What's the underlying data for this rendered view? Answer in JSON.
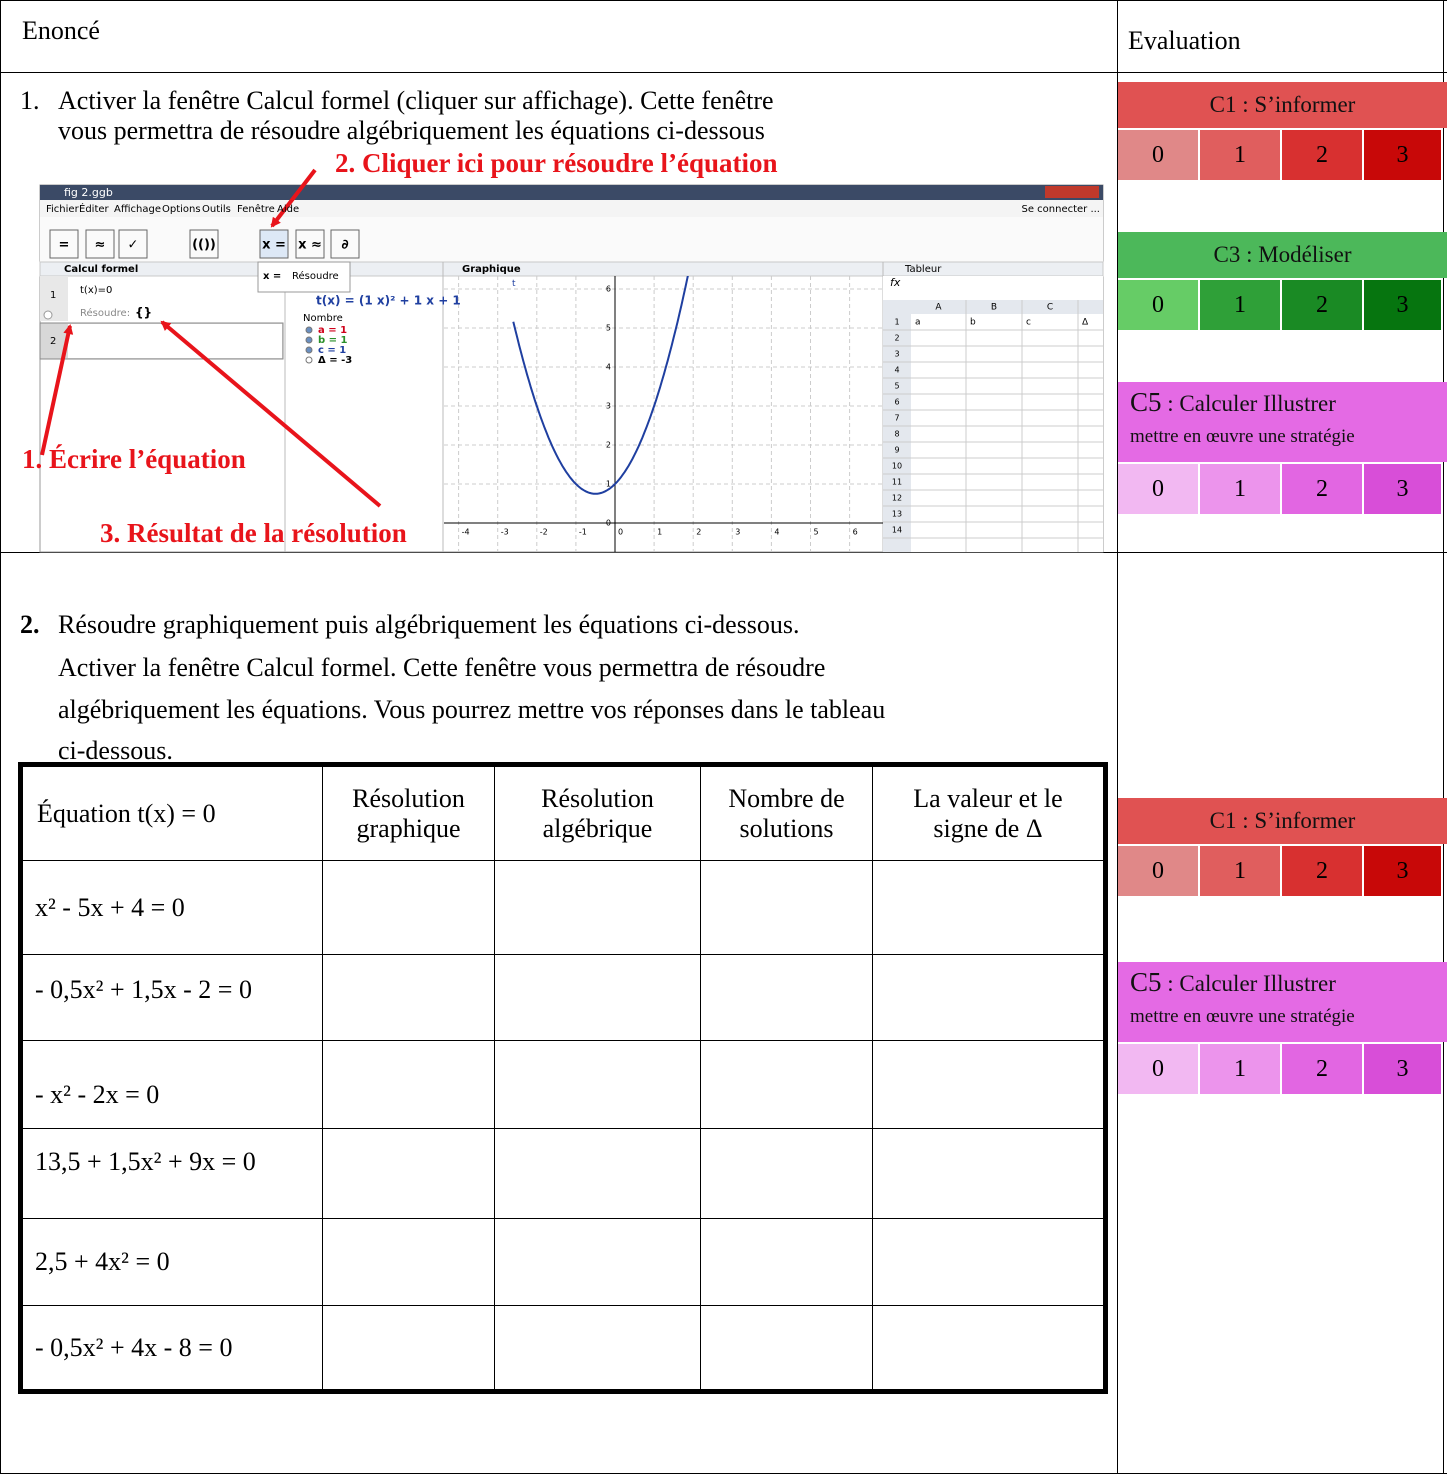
{
  "header": {
    "statement": "Enoncé",
    "evaluation": "Evaluation"
  },
  "step1": {
    "number": "1.",
    "lines": [
      "Activer la fenêtre Calcul formel (cliquer sur affichage). Cette fenêtre",
      "vous permettra de résoudre algébriquement les équations ci-dessous"
    ]
  },
  "screenshot": {
    "window_title": "fig 2.ggb",
    "menu": [
      "Fichier",
      "Éditer",
      "Affichage",
      "Options",
      "Outils",
      "Fenêtre",
      "Aide"
    ],
    "login": "Se connecter ...",
    "toolbar": [
      "=",
      "≈",
      "✓",
      "(())",
      "x =",
      "x ≈",
      "∂"
    ],
    "cas": {
      "title": "Calcul formel",
      "row_numbers": [
        1,
        2
      ],
      "input": "t(x)=0",
      "output_label": "Résoudre:",
      "output": "{}"
    },
    "tooltip": {
      "symbol": "x =",
      "label": "Résoudre"
    },
    "algebra": {
      "function": "t(x) = (1 x)² + 1 x + 1",
      "group": "Nombre",
      "items": [
        "a = 1",
        "b = 1",
        "c = 1",
        "Δ = -3"
      ]
    },
    "graphics": {
      "title": "Graphique",
      "function_name": "t",
      "xticks": [
        -4,
        -3,
        -2,
        -1,
        0,
        1,
        2,
        3,
        4,
        5,
        6
      ],
      "yticks": [
        0,
        1,
        2,
        3,
        4,
        5,
        6
      ]
    },
    "spreadsheet": {
      "title": "Tableur",
      "columns": [
        "A",
        "B",
        "C"
      ],
      "rows": [
        1,
        2,
        3,
        4,
        5,
        6,
        7,
        8,
        9,
        10,
        11,
        12,
        13,
        14
      ],
      "cells": [
        "a",
        "b",
        "c",
        "Δ"
      ]
    }
  },
  "annotations": [
    "1. Écrire l’équation",
    "2. Cliquer ici pour résoudre l’équation",
    "3. Résultat de la résolution"
  ],
  "step2": {
    "number": "2.",
    "lines": [
      "Résoudre graphiquement puis algébriquement les équations ci-dessous.",
      "Activer la fenêtre Calcul formel. Cette fenêtre vous permettra de résoudre",
      "algébriquement les équations. Vous pourrez mettre vos réponses dans le tableau",
      "ci-dessous."
    ]
  },
  "table": {
    "header": [
      [
        "Équation  t(x) = 0"
      ],
      [
        "Résolution",
        "graphique"
      ],
      [
        "Résolution",
        "algébrique"
      ],
      [
        "Nombre de",
        "solutions"
      ],
      [
        "La valeur et le",
        "signe  de  Δ"
      ]
    ],
    "rows": [
      "x² - 5x + 4 = 0",
      "- 0,5x² + 1,5x - 2 = 0",
      "- x² - 2x = 0",
      "13,5 + 1,5x² + 9x  = 0",
      "2,5 + 4x² = 0",
      "- 0,5x² + 4x - 8 = 0"
    ]
  },
  "evaluation": {
    "part1": [
      {
        "code": "C1",
        "title": " : S’informer",
        "title_color": "#e05252",
        "scores": [
          0,
          1,
          2,
          3
        ],
        "score_colors": [
          "#e08888",
          "#e05e5e",
          "#d83030",
          "#c80808"
        ]
      },
      {
        "code": "C3",
        "title": " : Modéliser",
        "title_color": "#4cb85a",
        "scores": [
          0,
          1,
          2,
          3
        ],
        "score_colors": [
          "#66cc66",
          "#2fa038",
          "#1a8a24",
          "#06750f"
        ]
      },
      {
        "code": "C5",
        "title": " : Calculer Illustrer",
        "subtitle": "mettre en œuvre une stratégie",
        "title_color": "#e46ae4",
        "scores": [
          0,
          1,
          2,
          3
        ],
        "score_colors": [
          "#f2b8f2",
          "#ec94ec",
          "#e266e2",
          "#d84ed8"
        ]
      }
    ],
    "part2": [
      {
        "code": "C1",
        "title": " : S’informer",
        "title_color": "#e05252",
        "scores": [
          0,
          1,
          2,
          3
        ],
        "score_colors": [
          "#e08888",
          "#e05e5e",
          "#d83030",
          "#c80808"
        ]
      },
      {
        "code": "C5",
        "title": " : Calculer Illustrer",
        "subtitle": "mettre en œuvre une stratégie",
        "title_color": "#e46ae4",
        "scores": [
          0,
          1,
          2,
          3
        ],
        "score_colors": [
          "#f2b8f2",
          "#ec94ec",
          "#e266e2",
          "#d84ed8"
        ]
      }
    ]
  }
}
